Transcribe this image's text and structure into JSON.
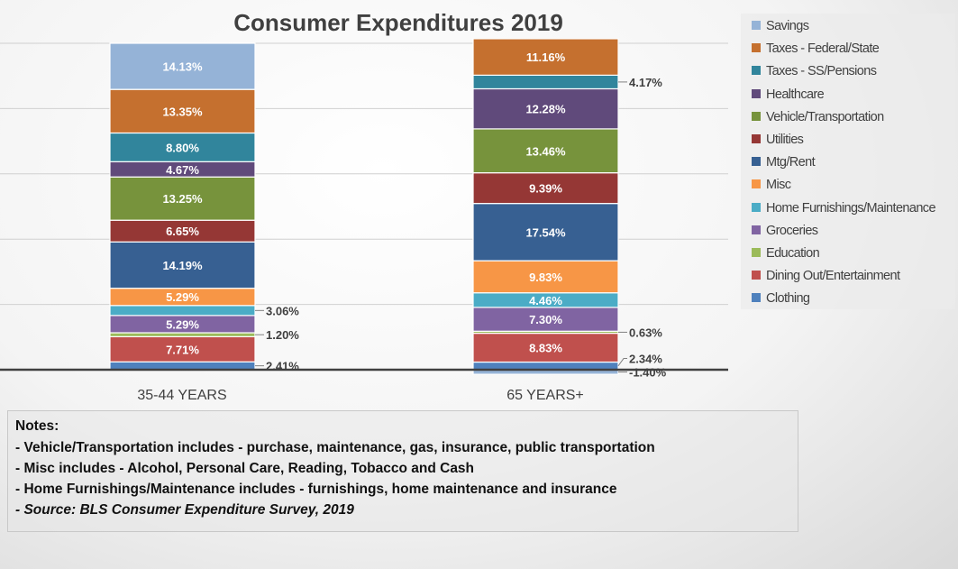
{
  "chart_data": {
    "type": "bar",
    "stacked": true,
    "title": "Consumer Expenditures 2019",
    "categories": [
      "35-44 YEARS",
      "65 YEARS+"
    ],
    "ylim": [
      -2,
      100
    ],
    "grid": true,
    "legend_position": "right",
    "series": [
      {
        "name": "Savings",
        "color": "#95B3D7",
        "values": [
          14.13,
          -1.4
        ]
      },
      {
        "name": "Taxes - Federal/State",
        "color": "#C5702F",
        "values": [
          13.35,
          11.16
        ]
      },
      {
        "name": "Taxes - SS/Pensions",
        "color": "#31859C",
        "values": [
          8.8,
          4.17
        ]
      },
      {
        "name": "Healthcare",
        "color": "#604A7B",
        "values": [
          4.67,
          12.28
        ]
      },
      {
        "name": "Vehicle/Transportation",
        "color": "#77933C",
        "values": [
          13.25,
          13.46
        ]
      },
      {
        "name": "Utilities",
        "color": "#953735",
        "values": [
          6.65,
          9.39
        ]
      },
      {
        "name": "Mtg/Rent",
        "color": "#376092",
        "values": [
          14.19,
          17.54
        ]
      },
      {
        "name": "Misc",
        "color": "#F79646",
        "values": [
          5.29,
          9.83
        ]
      },
      {
        "name": "Home Furnishings/Maintenance",
        "color": "#4BACC6",
        "values": [
          3.06,
          4.46
        ]
      },
      {
        "name": "Groceries",
        "color": "#8064A2",
        "values": [
          5.29,
          7.3
        ]
      },
      {
        "name": "Education",
        "color": "#9BBB59",
        "values": [
          1.2,
          0.63
        ]
      },
      {
        "name": "Dining Out/Entertainment",
        "color": "#C0504D",
        "values": [
          7.71,
          8.83
        ]
      },
      {
        "name": "Clothing",
        "color": "#4F81BD",
        "values": [
          2.41,
          2.34
        ]
      }
    ],
    "data_labels": [
      [
        "14.13%",
        "13.35%",
        "8.80%",
        "4.67%",
        "13.25%",
        "6.65%",
        "14.19%",
        "5.29%",
        "3.06%",
        "5.29%",
        "1.20%",
        "7.71%",
        "2.41%"
      ],
      [
        "-1.40%",
        "11.16%",
        "4.17%",
        "12.28%",
        "13.46%",
        "9.39%",
        "17.54%",
        "9.83%",
        "4.46%",
        "7.30%",
        "0.63%",
        "8.83%",
        "2.34%"
      ]
    ]
  },
  "notes": {
    "heading": "Notes:",
    "lines": [
      "- Vehicle/Transportation includes - purchase, maintenance, gas, insurance, public transportation",
      "- Misc includes - Alcohol, Personal Care, Reading, Tobacco and Cash",
      "- Home Furnishings/Maintenance includes - furnishings, home maintenance and insurance",
      "- Source:  BLS Consumer Expenditure Survey, 2019"
    ]
  }
}
